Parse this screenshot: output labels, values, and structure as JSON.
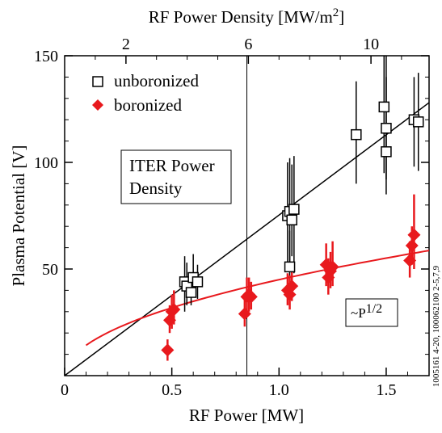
{
  "chart_data": {
    "type": "scatter",
    "xlabel": "RF Power [MW]",
    "ylabel": "Plasma Potential [V]",
    "top_xlabel": "RF Power Density [MW/m²]",
    "top_xlabel_main": "RF Power Density [MW/m",
    "top_xlabel_sup": "2",
    "top_xlabel_end": "]",
    "xlim": [
      0,
      1.7
    ],
    "ylim": [
      0,
      150
    ],
    "x_ticks": [
      0,
      0.5,
      1.0,
      1.5
    ],
    "x_tick_labels": [
      "0",
      "0.5",
      "1.0",
      "1.5"
    ],
    "y_ticks": [
      50,
      100,
      150
    ],
    "y_tick_labels": [
      "50",
      "100",
      "150"
    ],
    "top_ticks": [
      2,
      6,
      10
    ],
    "top_tick_labels": [
      "2",
      "6",
      "10"
    ],
    "top_tick_positions_mw": [
      0.286,
      0.857,
      1.429
    ],
    "legend": {
      "placement": "top-left",
      "entries": [
        {
          "label": "unboronized",
          "marker": "open-square",
          "color": "#000000"
        },
        {
          "label": "boronized",
          "marker": "filled-diamond",
          "color": "#e8191d"
        }
      ]
    },
    "annotations": {
      "iter_line1": "ITER Power",
      "iter_line2": "Density",
      "iter_line_x": 0.85,
      "sqrt_prefix": "~P",
      "sqrt_exp": "1/2",
      "side_id": "1005161 4-20, 100062100 2-5,7,9"
    },
    "series": [
      {
        "name": "unboronized",
        "color": "#000000",
        "points": [
          {
            "x": 0.56,
            "y": 44,
            "ylo": 30,
            "yhi": 56
          },
          {
            "x": 0.57,
            "y": 42,
            "ylo": 33,
            "yhi": 53
          },
          {
            "x": 0.59,
            "y": 39,
            "ylo": 33,
            "yhi": 46
          },
          {
            "x": 0.6,
            "y": 46,
            "ylo": 37,
            "yhi": 57
          },
          {
            "x": 0.62,
            "y": 44,
            "ylo": 36,
            "yhi": 52
          },
          {
            "x": 1.04,
            "y": 75,
            "ylo": 50,
            "yhi": 100
          },
          {
            "x": 1.05,
            "y": 77,
            "ylo": 53,
            "yhi": 102
          },
          {
            "x": 1.05,
            "y": 51,
            "ylo": 40,
            "yhi": 68
          },
          {
            "x": 1.06,
            "y": 73,
            "ylo": 56,
            "yhi": 99
          },
          {
            "x": 1.07,
            "y": 78,
            "ylo": 48,
            "yhi": 103
          },
          {
            "x": 1.36,
            "y": 113,
            "ylo": 90,
            "yhi": 138
          },
          {
            "x": 1.49,
            "y": 126,
            "ylo": 95,
            "yhi": 150
          },
          {
            "x": 1.5,
            "y": 116,
            "ylo": 92,
            "yhi": 150
          },
          {
            "x": 1.5,
            "y": 105,
            "ylo": 85,
            "yhi": 140
          },
          {
            "x": 1.63,
            "y": 120,
            "ylo": 98,
            "yhi": 140
          },
          {
            "x": 1.65,
            "y": 119,
            "ylo": 96,
            "yhi": 142
          }
        ],
        "fit": {
          "type": "linear",
          "x": [
            0,
            1.7
          ],
          "y": [
            0,
            128
          ]
        }
      },
      {
        "name": "boronized",
        "color": "#e8191d",
        "points": [
          {
            "x": 0.48,
            "y": 12,
            "ylo": 7,
            "yhi": 17
          },
          {
            "x": 0.49,
            "y": 26,
            "ylo": 20,
            "yhi": 33
          },
          {
            "x": 0.5,
            "y": 30,
            "ylo": 22,
            "yhi": 38
          },
          {
            "x": 0.51,
            "y": 31,
            "ylo": 24,
            "yhi": 40
          },
          {
            "x": 0.84,
            "y": 29,
            "ylo": 23,
            "yhi": 36
          },
          {
            "x": 0.85,
            "y": 37,
            "ylo": 28,
            "yhi": 46
          },
          {
            "x": 0.86,
            "y": 38,
            "ylo": 30,
            "yhi": 46
          },
          {
            "x": 0.87,
            "y": 37,
            "ylo": 31,
            "yhi": 44
          },
          {
            "x": 1.04,
            "y": 40,
            "ylo": 33,
            "yhi": 48
          },
          {
            "x": 1.05,
            "y": 38,
            "ylo": 31,
            "yhi": 47
          },
          {
            "x": 1.06,
            "y": 42,
            "ylo": 35,
            "yhi": 50
          },
          {
            "x": 1.22,
            "y": 52,
            "ylo": 42,
            "yhi": 62
          },
          {
            "x": 1.23,
            "y": 46,
            "ylo": 38,
            "yhi": 55
          },
          {
            "x": 1.24,
            "y": 49,
            "ylo": 41,
            "yhi": 58
          },
          {
            "x": 1.25,
            "y": 51,
            "ylo": 42,
            "yhi": 63
          },
          {
            "x": 1.61,
            "y": 54,
            "ylo": 46,
            "yhi": 63
          },
          {
            "x": 1.62,
            "y": 61,
            "ylo": 52,
            "yhi": 70
          },
          {
            "x": 1.63,
            "y": 66,
            "ylo": 50,
            "yhi": 85
          }
        ],
        "fit": {
          "type": "power",
          "coef": 45.0,
          "exp": 0.5,
          "xmin": 0.1,
          "xmax": 1.7
        }
      }
    ]
  }
}
